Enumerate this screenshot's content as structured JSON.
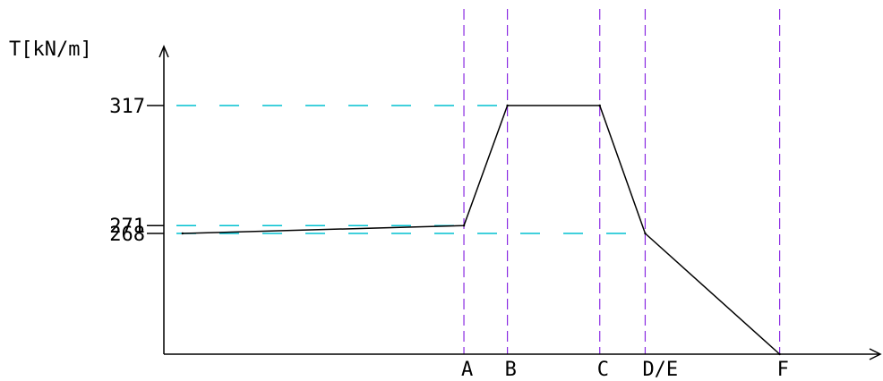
{
  "chart_data": {
    "type": "line",
    "title": "",
    "ylabel": "T[kN/m]",
    "xlabel": "",
    "ylim": [
      0,
      317
    ],
    "y_ticks": [
      {
        "label": "317",
        "value": 317
      },
      {
        "label": "271",
        "value": 271
      },
      {
        "label": "268",
        "value": 268
      }
    ],
    "x_markers": [
      {
        "label": "A",
        "position": 0.4188
      },
      {
        "label": "B",
        "position": 0.4795
      },
      {
        "label": "C",
        "position": 0.6084
      },
      {
        "label": "D/E",
        "position": 0.6718
      },
      {
        "label": "F",
        "position": 0.8595
      }
    ],
    "series": [
      {
        "points": [
          {
            "x": 0.026,
            "y": 268
          },
          {
            "x": 0.4188,
            "y": 271
          },
          {
            "x": 0.4795,
            "y": 317
          },
          {
            "x": 0.6084,
            "y": 317
          },
          {
            "x": 0.6718,
            "y": 268
          },
          {
            "x": 0.8595,
            "y": 0
          }
        ]
      }
    ],
    "colors": {
      "curve": "#000000",
      "axis": "#000000",
      "vertical_guides": "#8a2be2",
      "horizontal_guides": "#00c0d0"
    },
    "grid": false
  }
}
